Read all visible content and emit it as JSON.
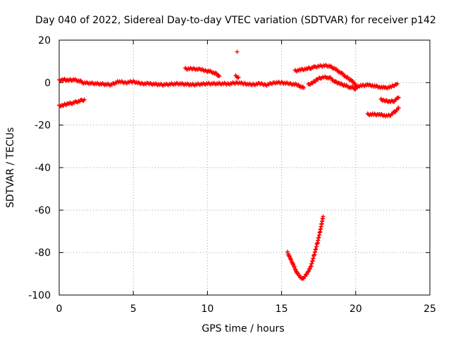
{
  "chart_data": {
    "type": "scatter",
    "title": "Day 040 of 2022, Sidereal Day-to-day VTEC variation (SDTVAR) for receiver p142",
    "xlabel": "GPS time / hours",
    "ylabel": "SDTVAR / TECUs",
    "xlim": [
      0,
      25
    ],
    "ylim": [
      -100,
      20
    ],
    "xticks": [
      0,
      5,
      10,
      15,
      20,
      25
    ],
    "yticks": [
      20,
      0,
      -20,
      -40,
      -60,
      -80,
      -100
    ],
    "grid": true,
    "marker": "+",
    "color": "#ff0000",
    "segments": [
      {
        "x": [
          0.0,
          0.3,
          0.6,
          0.9,
          1.2,
          1.5
        ],
        "y": [
          1.0,
          1.5,
          1.0,
          1.5,
          1.0,
          0.5
        ]
      },
      {
        "x": [
          0.0,
          0.3,
          0.6,
          0.9,
          1.2,
          1.5,
          1.7
        ],
        "y": [
          -11.0,
          -10.5,
          -10.0,
          -9.5,
          -9.0,
          -8.5,
          -8.0
        ]
      },
      {
        "x": [
          1.5,
          2.5,
          3.5,
          4.0,
          4.5,
          5.0,
          5.5,
          6.0,
          7.0,
          8.0,
          9.0,
          10.0,
          11.0,
          11.5,
          12.0,
          12.5,
          13.0,
          13.5,
          14.0,
          14.5,
          15.0,
          15.5,
          16.0,
          16.5
        ],
        "y": [
          0.0,
          -0.5,
          -1.0,
          0.5,
          0.0,
          0.5,
          -0.5,
          -0.5,
          -1.0,
          -0.5,
          -1.0,
          -0.5,
          -0.5,
          -0.5,
          0.0,
          -0.5,
          -1.0,
          -0.5,
          -1.0,
          0.0,
          0.0,
          -0.5,
          -1.0,
          -2.5
        ]
      },
      {
        "x": [
          8.5,
          9.0,
          9.5,
          10.0,
          10.3,
          10.6,
          10.8
        ],
        "y": [
          6.5,
          6.5,
          6.2,
          5.5,
          5.0,
          4.0,
          3.0
        ]
      },
      {
        "x": [
          12.0
        ],
        "y": [
          14.5
        ]
      },
      {
        "x": [
          11.9,
          12.1
        ],
        "y": [
          3.0,
          2.5
        ]
      },
      {
        "x": [
          15.9,
          16.3,
          16.7,
          17.0,
          17.3,
          17.6,
          17.9,
          18.2,
          18.5,
          18.8,
          19.1,
          19.4,
          19.7,
          20.0
        ],
        "y": [
          5.5,
          6.0,
          6.5,
          7.0,
          7.5,
          7.8,
          8.0,
          7.8,
          7.0,
          5.5,
          4.0,
          2.5,
          1.0,
          -1.0
        ]
      },
      {
        "x": [
          16.8,
          17.1,
          17.4,
          17.7,
          18.0,
          18.3,
          18.6,
          18.9,
          19.2,
          19.5,
          19.8,
          20.0
        ],
        "y": [
          -1.0,
          0.0,
          1.5,
          2.5,
          2.5,
          2.0,
          0.5,
          -0.5,
          -1.0,
          -2.0,
          -2.5,
          -3.0
        ]
      },
      {
        "x": [
          20.0,
          20.4,
          20.8,
          21.2,
          21.6,
          22.0,
          22.4,
          22.8
        ],
        "y": [
          -2.0,
          -1.5,
          -1.0,
          -1.5,
          -2.0,
          -2.5,
          -2.0,
          -0.5
        ]
      },
      {
        "x": [
          21.7,
          22.0,
          22.3,
          22.6,
          22.9
        ],
        "y": [
          -8.0,
          -8.5,
          -9.0,
          -8.5,
          -7.0
        ]
      },
      {
        "x": [
          20.8,
          21.2,
          21.6,
          22.0,
          22.3,
          22.6,
          22.9
        ],
        "y": [
          -15.0,
          -15.0,
          -15.0,
          -15.5,
          -15.5,
          -14.0,
          -12.0
        ]
      },
      {
        "x": [
          15.4,
          15.6,
          15.8,
          16.0,
          16.2,
          16.4,
          16.6,
          16.8,
          17.0,
          17.2,
          17.4,
          17.6,
          17.8
        ],
        "y": [
          -80.0,
          -83.0,
          -86.0,
          -89.0,
          -91.0,
          -92.5,
          -91.0,
          -89.0,
          -86.0,
          -81.0,
          -76.0,
          -70.0,
          -63.0
        ]
      }
    ]
  }
}
